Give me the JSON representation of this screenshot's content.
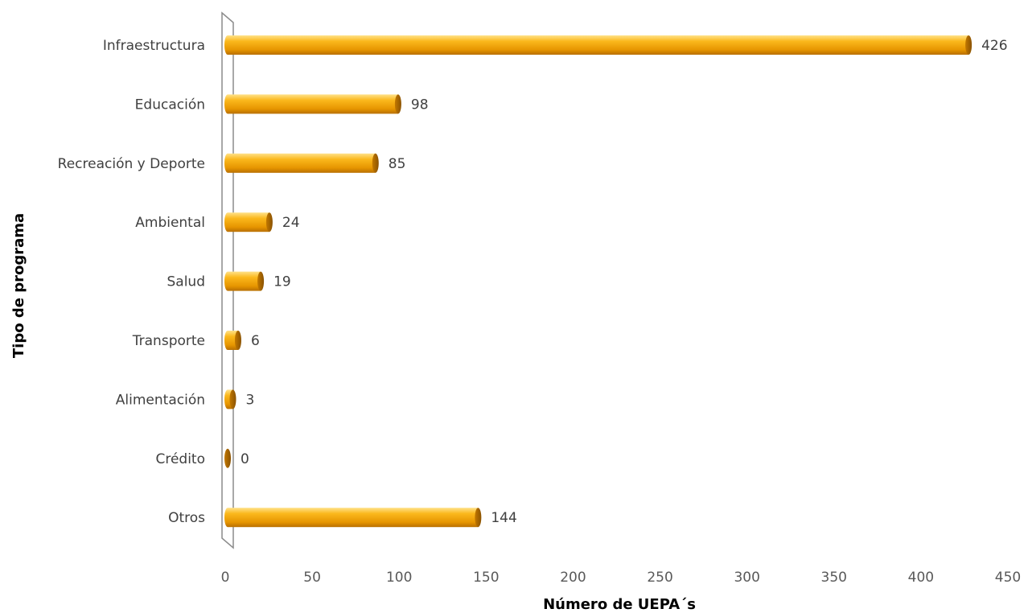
{
  "chart_data": {
    "type": "bar",
    "orientation": "horizontal",
    "categories": [
      "Infraestructura",
      "Educación",
      "Recreación y Deporte",
      "Ambiental",
      "Salud",
      "Transporte",
      "Alimentación",
      "Crédito",
      "Otros"
    ],
    "values": [
      426,
      98,
      85,
      24,
      19,
      6,
      3,
      0,
      144
    ],
    "xlabel": "Número de UEPA´s",
    "ylabel": "Tipo de programa",
    "xlim": [
      0,
      450
    ],
    "xticks": [
      0,
      50,
      100,
      150,
      200,
      250,
      300,
      350,
      400,
      450
    ],
    "grid": false,
    "legend": "none",
    "bar_color": "#F5A200"
  }
}
